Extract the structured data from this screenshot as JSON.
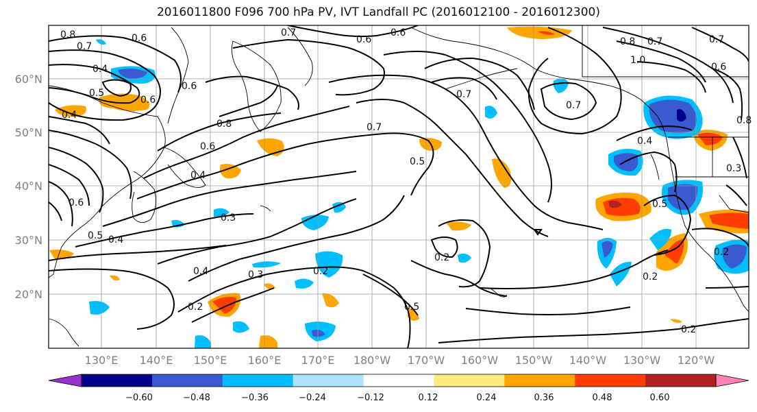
{
  "title": "2016011800 F096 700 hPa PV, IVT Landfall PC (2016012100 - 2016012300)",
  "lat_labels": [
    "60°N",
    "50°N",
    "40°N",
    "30°N",
    "20°N"
  ],
  "lon_labels": [
    "130°E",
    "140°E",
    "150°E",
    "160°E",
    "170°E",
    "180°W",
    "170°W",
    "160°W",
    "150°W",
    "140°W",
    "130°W",
    "120°W"
  ],
  "colorbar": {
    "colors": [
      "#9932cc",
      "#00008b",
      "#3a5bcf",
      "#00bfff",
      "#b0e0ff",
      "#ffffff",
      "#ffea80",
      "#ffa500",
      "#ff3d00",
      "#b22222",
      "#ff82b0"
    ],
    "tick_labels": [
      "−0.60",
      "−0.48",
      "−0.36",
      "−0.24",
      "−0.12",
      "0.12",
      "0.24",
      "0.36",
      "0.48",
      "0.60"
    ]
  },
  "contour_labels": [
    "0.8",
    "0.7",
    "0.6",
    "0.7",
    "0.6",
    "0.4",
    "0.5",
    "0.6",
    "0.6",
    "0.6",
    "0.8",
    "0.4",
    "0.6",
    "0.4",
    "0.5",
    "0.6",
    "0.3",
    "0.2",
    "0.5",
    "0.4",
    "0.3",
    "0.4",
    "0.2",
    "0.2",
    "0.7",
    "0.5",
    "0.7",
    "0.7",
    "0.8",
    "0.7",
    "1.0",
    "0.7",
    "0.6",
    "0.8",
    "0.4",
    "0.5",
    "0.2",
    "0.2",
    "0.2",
    "0.3"
  ]
}
